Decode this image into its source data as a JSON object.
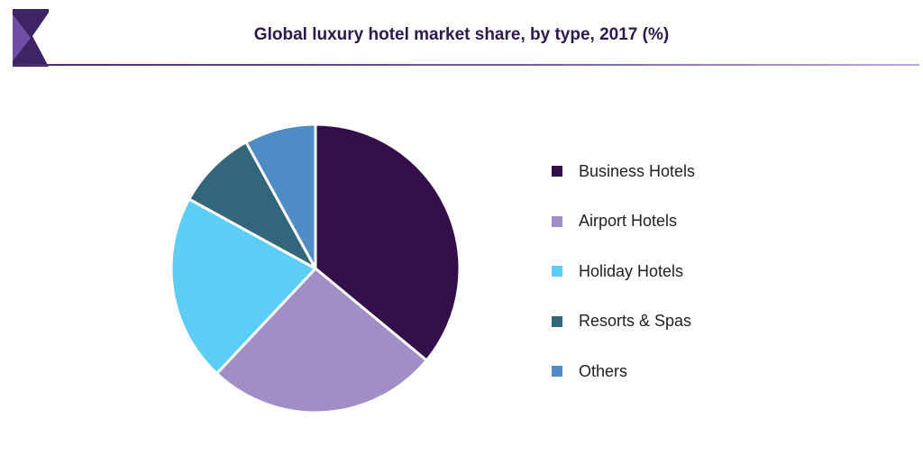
{
  "header": {
    "title": "Global luxury hotel market share, by type, 2017 (%)"
  },
  "colors": {
    "logo_dark": "#3d2465",
    "logo_light": "#6f4ea3",
    "slice_border": "#ffffff"
  },
  "chart_data": {
    "type": "pie",
    "title": "Global luxury hotel market share, by type, 2017 (%)",
    "start_angle_deg": 0,
    "direction": "clockwise",
    "legend_position": "right",
    "series": [
      {
        "name": "Business Hotels",
        "value": 36,
        "color": "#33104a"
      },
      {
        "name": "Airport Hotels",
        "value": 26,
        "color": "#a28ec6"
      },
      {
        "name": "Holiday Hotels",
        "value": 21,
        "color": "#5ccdf5"
      },
      {
        "name": "Resorts & Spas",
        "value": 9,
        "color": "#33667a"
      },
      {
        "name": "Others",
        "value": 8,
        "color": "#4f8bc4"
      }
    ]
  }
}
